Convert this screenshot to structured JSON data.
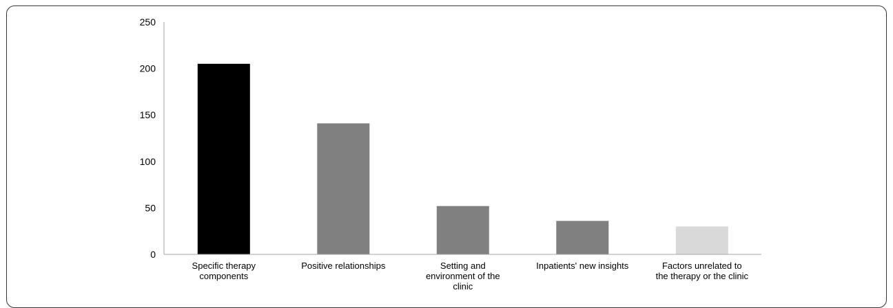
{
  "chart_data": {
    "type": "bar",
    "title": "",
    "xlabel": "",
    "ylabel": "",
    "ylim": [
      0,
      250
    ],
    "yticks": [
      0,
      50,
      100,
      150,
      200,
      250
    ],
    "grid": false,
    "legend": "none",
    "categories": [
      [
        "Specific therapy",
        "components"
      ],
      [
        "Positive relationships"
      ],
      [
        "Setting and",
        "environment of the",
        "clinic"
      ],
      [
        "Inpatients' new insights"
      ],
      [
        "Factors unrelated to",
        "the therapy or the clinic"
      ]
    ],
    "values": [
      205,
      141,
      52,
      36,
      30
    ],
    "colors": [
      "#000000",
      "#808080",
      "#808080",
      "#808080",
      "#d9d9d9"
    ],
    "axis_color": "#a6a6a6"
  }
}
